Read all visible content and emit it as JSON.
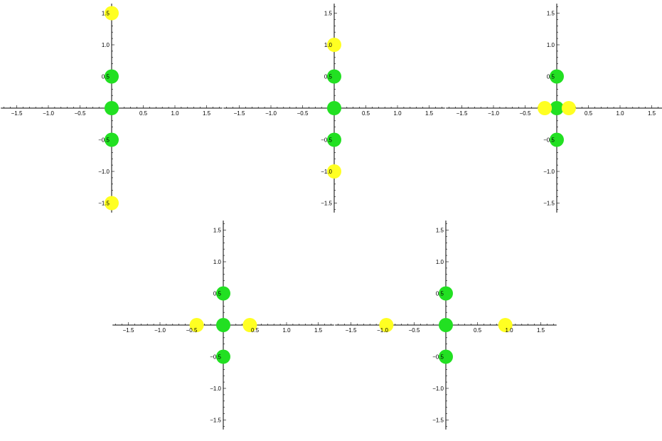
{
  "colors": {
    "axis": "#000000",
    "green_point": "#22e022",
    "yellow_point": "#ffff22"
  },
  "chart_data": [
    {
      "type": "scatter",
      "title": "",
      "xlabel": "",
      "ylabel": "",
      "xlim": [
        -1.75,
        1.75
      ],
      "ylim": [
        -1.65,
        1.65
      ],
      "x_ticks": [
        "-1.5",
        "-1.0",
        "-0.5",
        "0.5",
        "1.0",
        "1.5"
      ],
      "y_ticks": [
        "1.5",
        "1.0",
        "0.5",
        "-0.5",
        "-1.0",
        "-1.5"
      ],
      "grid": false,
      "series": [
        {
          "color": "green",
          "points": [
            [
              0,
              0.5
            ],
            [
              0,
              0
            ],
            [
              0,
              -0.5
            ]
          ]
        },
        {
          "color": "yellow",
          "points": [
            [
              0,
              1.5
            ],
            [
              0,
              -1.5
            ]
          ]
        }
      ]
    },
    {
      "type": "scatter",
      "title": "",
      "xlabel": "",
      "ylabel": "",
      "xlim": [
        -1.75,
        1.75
      ],
      "ylim": [
        -1.65,
        1.65
      ],
      "x_ticks": [
        "-1.5",
        "-1.0",
        "-0.5",
        "0.5",
        "1.0",
        "1.5"
      ],
      "y_ticks": [
        "1.5",
        "1.0",
        "0.5",
        "-0.5",
        "-1.0",
        "-1.5"
      ],
      "grid": false,
      "series": [
        {
          "color": "green",
          "points": [
            [
              0,
              0.5
            ],
            [
              0,
              0
            ],
            [
              0,
              -0.5
            ]
          ]
        },
        {
          "color": "yellow",
          "points": [
            [
              0,
              1.0
            ],
            [
              0,
              -1.0
            ]
          ]
        }
      ]
    },
    {
      "type": "scatter",
      "title": "",
      "xlabel": "",
      "ylabel": "",
      "xlim": [
        -1.75,
        1.75
      ],
      "ylim": [
        -1.65,
        1.65
      ],
      "x_ticks": [
        "-1.5",
        "-1.0",
        "-0.5",
        "0.5",
        "1.0",
        "1.5"
      ],
      "y_ticks": [
        "1.5",
        "1.0",
        "0.5",
        "-0.5",
        "-1.0",
        "-1.5"
      ],
      "grid": false,
      "series": [
        {
          "color": "green",
          "points": [
            [
              0,
              0.5
            ],
            [
              0,
              0
            ],
            [
              0,
              -0.5
            ]
          ]
        },
        {
          "color": "yellow",
          "points": [
            [
              -0.19,
              0
            ],
            [
              0.19,
              0
            ]
          ]
        }
      ]
    },
    {
      "type": "scatter",
      "title": "",
      "xlabel": "",
      "ylabel": "",
      "xlim": [
        -1.75,
        1.75
      ],
      "ylim": [
        -1.65,
        1.65
      ],
      "x_ticks": [
        "-1.5",
        "-1.0",
        "-0.5",
        "0.5",
        "1.0",
        "1.5"
      ],
      "y_ticks": [
        "1.5",
        "1.0",
        "0.5",
        "-0.5",
        "-1.0",
        "-1.5"
      ],
      "grid": false,
      "series": [
        {
          "color": "green",
          "points": [
            [
              0,
              0.5
            ],
            [
              0,
              0
            ],
            [
              0,
              -0.5
            ]
          ]
        },
        {
          "color": "yellow",
          "points": [
            [
              -0.42,
              0
            ],
            [
              0.42,
              0
            ]
          ]
        }
      ]
    },
    {
      "type": "scatter",
      "title": "",
      "xlabel": "",
      "ylabel": "",
      "xlim": [
        -1.75,
        1.75
      ],
      "ylim": [
        -1.65,
        1.65
      ],
      "x_ticks": [
        "-1.5",
        "-1.0",
        "-0.5",
        "0.5",
        "1.0",
        "1.5"
      ],
      "y_ticks": [
        "1.5",
        "1.0",
        "0.5",
        "-0.5",
        "-1.0",
        "-1.5"
      ],
      "grid": false,
      "series": [
        {
          "color": "green",
          "points": [
            [
              0,
              0.5
            ],
            [
              0,
              0
            ],
            [
              0,
              -0.5
            ]
          ]
        },
        {
          "color": "yellow",
          "points": [
            [
              -0.94,
              0
            ],
            [
              0.94,
              0
            ]
          ]
        }
      ]
    }
  ]
}
